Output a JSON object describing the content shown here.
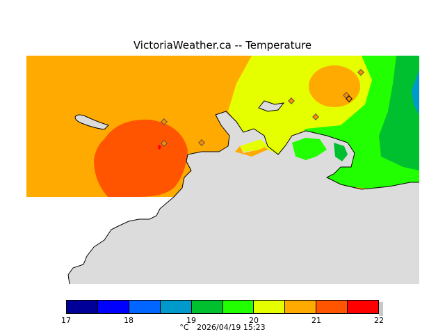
{
  "title": "VictoriaWeather.ca  --  Temperature",
  "map": {
    "land_color": "#dcdcdc",
    "station_color": "#ff8c00",
    "region_colors": {
      "orange": "#ffaa00",
      "red_orange": "#ff5500",
      "red": "#ff0000",
      "yellow": "#e6ff00",
      "green": "#22ff00",
      "dark_green": "#00c030",
      "teal": "#0099cc"
    }
  },
  "legend": {
    "colors": [
      "#000099",
      "#0000ff",
      "#0066ff",
      "#0099cc",
      "#00c030",
      "#22ff00",
      "#e6ff00",
      "#ffaa00",
      "#ff5500",
      "#ff0000"
    ],
    "ticks": [
      "17",
      "18",
      "19",
      "20",
      "21",
      "22"
    ]
  },
  "footer": {
    "unit": "°C",
    "timestamp": "2026/04/19 15:23"
  }
}
